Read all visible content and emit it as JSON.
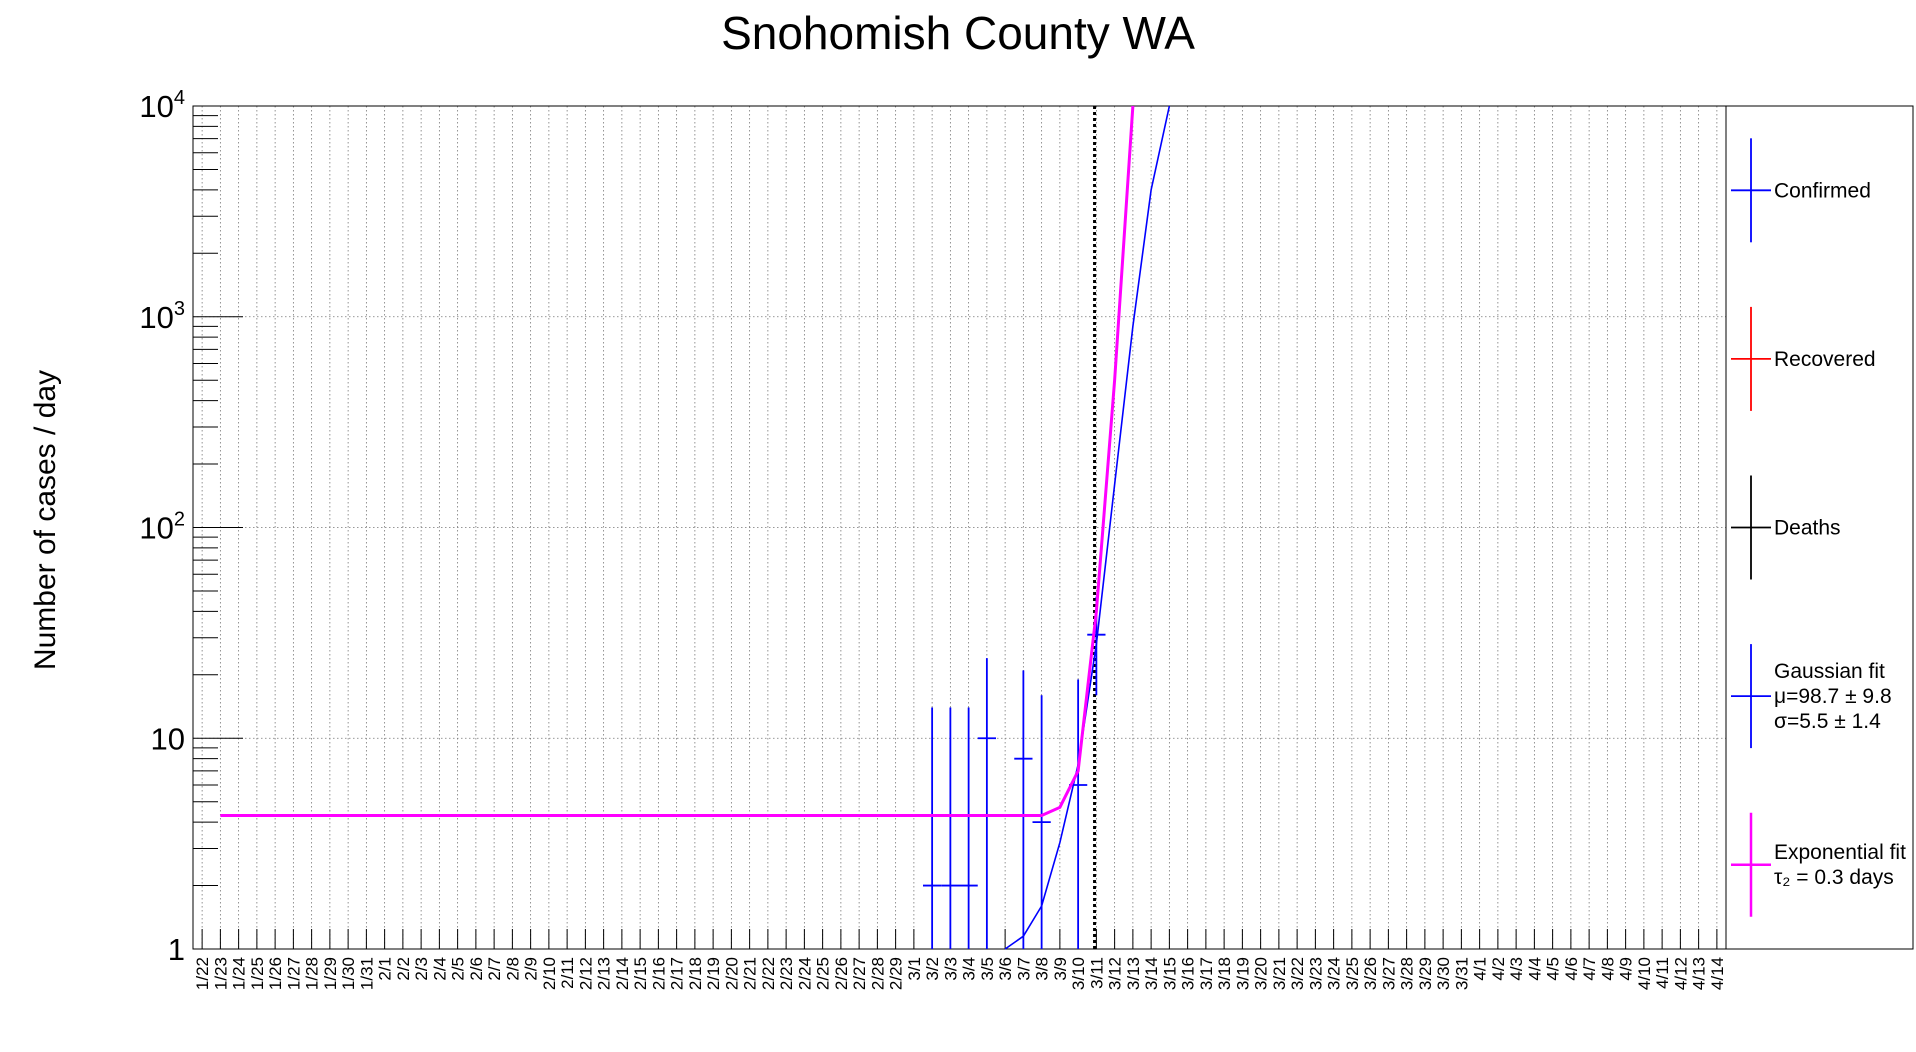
{
  "chart_data": {
    "type": "line",
    "title": "Snohomish County WA",
    "xlabel": "",
    "ylabel": "Number of cases / day",
    "yscale": "log",
    "ylim": [
      1,
      10000
    ],
    "y_ticks": [
      {
        "value": 1,
        "label": "1"
      },
      {
        "value": 10,
        "label": "10"
      },
      {
        "value": 100,
        "label": "10",
        "exp": "2"
      },
      {
        "value": 1000,
        "label": "10",
        "exp": "3"
      },
      {
        "value": 10000,
        "label": "10",
        "exp": "4"
      }
    ],
    "grid": true,
    "legend_position": "right",
    "categories": [
      "1/22",
      "1/23",
      "1/24",
      "1/25",
      "1/26",
      "1/27",
      "1/28",
      "1/29",
      "1/30",
      "1/31",
      "2/1",
      "2/2",
      "2/3",
      "2/4",
      "2/5",
      "2/6",
      "2/7",
      "2/8",
      "2/9",
      "2/10",
      "2/11",
      "2/12",
      "2/13",
      "2/14",
      "2/15",
      "2/16",
      "2/17",
      "2/18",
      "2/19",
      "2/20",
      "2/21",
      "2/22",
      "2/23",
      "2/24",
      "2/25",
      "2/26",
      "2/27",
      "2/28",
      "2/29",
      "3/1",
      "3/2",
      "3/3",
      "3/4",
      "3/5",
      "3/6",
      "3/7",
      "3/8",
      "3/9",
      "3/10",
      "3/11",
      "3/12",
      "3/13",
      "3/14",
      "3/15",
      "3/16",
      "3/17",
      "3/18",
      "3/19",
      "3/20",
      "3/21",
      "3/22",
      "3/23",
      "3/24",
      "3/25",
      "3/26",
      "3/27",
      "3/28",
      "3/29",
      "3/30",
      "3/31",
      "4/1",
      "4/2",
      "4/3",
      "4/4",
      "4/5",
      "4/6",
      "4/7",
      "4/8",
      "4/9",
      "4/10",
      "4/11",
      "4/12",
      "4/13",
      "4/14"
    ],
    "vertical_marker_date": "3/11",
    "series": [
      {
        "name": "Confirmed",
        "color": "#0000ff",
        "style": "points-with-errors",
        "points": [
          {
            "x": "3/2",
            "y": 2,
            "err_low": 0.0,
            "err_high": 14
          },
          {
            "x": "3/3",
            "y": 2,
            "err_low": 0.0,
            "err_high": 14
          },
          {
            "x": "3/4",
            "y": 2,
            "err_low": 0.0,
            "err_high": 14
          },
          {
            "x": "3/5",
            "y": 10,
            "err_low": 0.0,
            "err_high": 24
          },
          {
            "x": "3/7",
            "y": 8,
            "err_low": 0.0,
            "err_high": 21
          },
          {
            "x": "3/8",
            "y": 4,
            "err_low": 0.0,
            "err_high": 16
          },
          {
            "x": "3/10",
            "y": 6,
            "err_low": 0.0,
            "err_high": 19
          },
          {
            "x": "3/11",
            "y": 31,
            "err_low": 16,
            "err_high": 47
          }
        ]
      },
      {
        "name": "Recovered",
        "color": "#ff0000",
        "style": "points-with-errors",
        "points": []
      },
      {
        "name": "Deaths",
        "color": "#000000",
        "style": "points-with-errors",
        "points": []
      },
      {
        "name": "Gaussian fit",
        "legend_lines": [
          "Gaussian fit",
          "μ=98.7 ± 9.8",
          "σ=5.5 ± 1.4"
        ],
        "color": "#0000ff",
        "style": "curve",
        "points": [
          {
            "x": "3/6",
            "y": 1.0
          },
          {
            "x": "3/7",
            "y": 1.15
          },
          {
            "x": "3/8",
            "y": 1.6
          },
          {
            "x": "3/9",
            "y": 3.2
          },
          {
            "x": "3/10",
            "y": 7.5
          },
          {
            "x": "3/11",
            "y": 28
          },
          {
            "x": "3/12",
            "y": 160
          },
          {
            "x": "3/13",
            "y": 900
          },
          {
            "x": "3/14",
            "y": 4000
          },
          {
            "x": "3/15",
            "y": 10000
          }
        ]
      },
      {
        "name": "Exponential fit",
        "legend_lines": [
          "Exponential fit",
          "τ₂ = 0.3 days"
        ],
        "color": "#ff00ff",
        "style": "curve",
        "points": [
          {
            "x": "1/23",
            "y": 4.3
          },
          {
            "x": "3/8",
            "y": 4.3
          },
          {
            "x": "3/9",
            "y": 4.7
          },
          {
            "x": "3/10",
            "y": 7.0
          },
          {
            "x": "3/11",
            "y": 40
          },
          {
            "x": "3/12",
            "y": 500
          },
          {
            "x": "3/13",
            "y": 10000
          }
        ]
      }
    ]
  }
}
